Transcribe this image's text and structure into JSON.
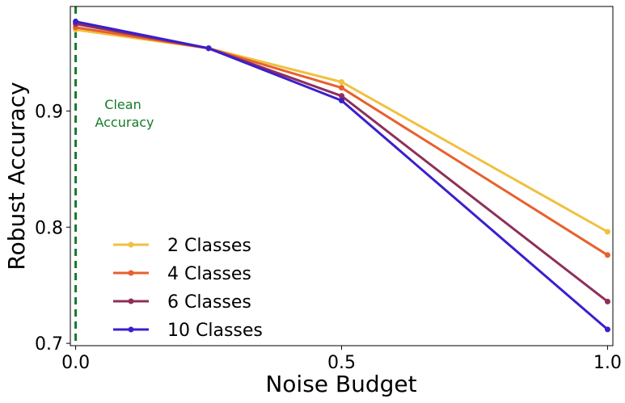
{
  "chart_data": {
    "type": "line",
    "title": "",
    "xlabel": "Noise Budget",
    "ylabel": "Robust Accuracy",
    "xlim": [
      -0.01,
      1.01
    ],
    "ylim": [
      0.698,
      0.99
    ],
    "x": [
      0.0,
      0.25,
      0.5,
      1.0
    ],
    "x_ticks": [
      {
        "value": 0.0,
        "label": "0.0"
      },
      {
        "value": 0.5,
        "label": "0.5"
      },
      {
        "value": 1.0,
        "label": "1.0"
      }
    ],
    "y_ticks": [
      {
        "value": 0.7,
        "label": "0.7"
      },
      {
        "value": 0.8,
        "label": "0.8"
      },
      {
        "value": 0.9,
        "label": "0.9"
      }
    ],
    "grid": false,
    "legend_position": "lower-left",
    "series": [
      {
        "name": "2 Classes",
        "color": "#f0c040",
        "values": [
          0.97,
          0.954,
          0.925,
          0.796
        ]
      },
      {
        "name": "4 Classes",
        "color": "#e8602c",
        "values": [
          0.972,
          0.954,
          0.92,
          0.776
        ]
      },
      {
        "name": "6 Classes",
        "color": "#8e2f5a",
        "values": [
          0.975,
          0.954,
          0.913,
          0.736
        ]
      },
      {
        "name": "10 Classes",
        "color": "#3a1fcf",
        "values": [
          0.977,
          0.954,
          0.909,
          0.712
        ]
      }
    ],
    "vline": {
      "x": 0.0,
      "color": "#157a2a",
      "style": "dashed"
    },
    "annotation": {
      "lines": [
        "Clean",
        "Accuracy"
      ],
      "color": "#157a2a"
    }
  }
}
